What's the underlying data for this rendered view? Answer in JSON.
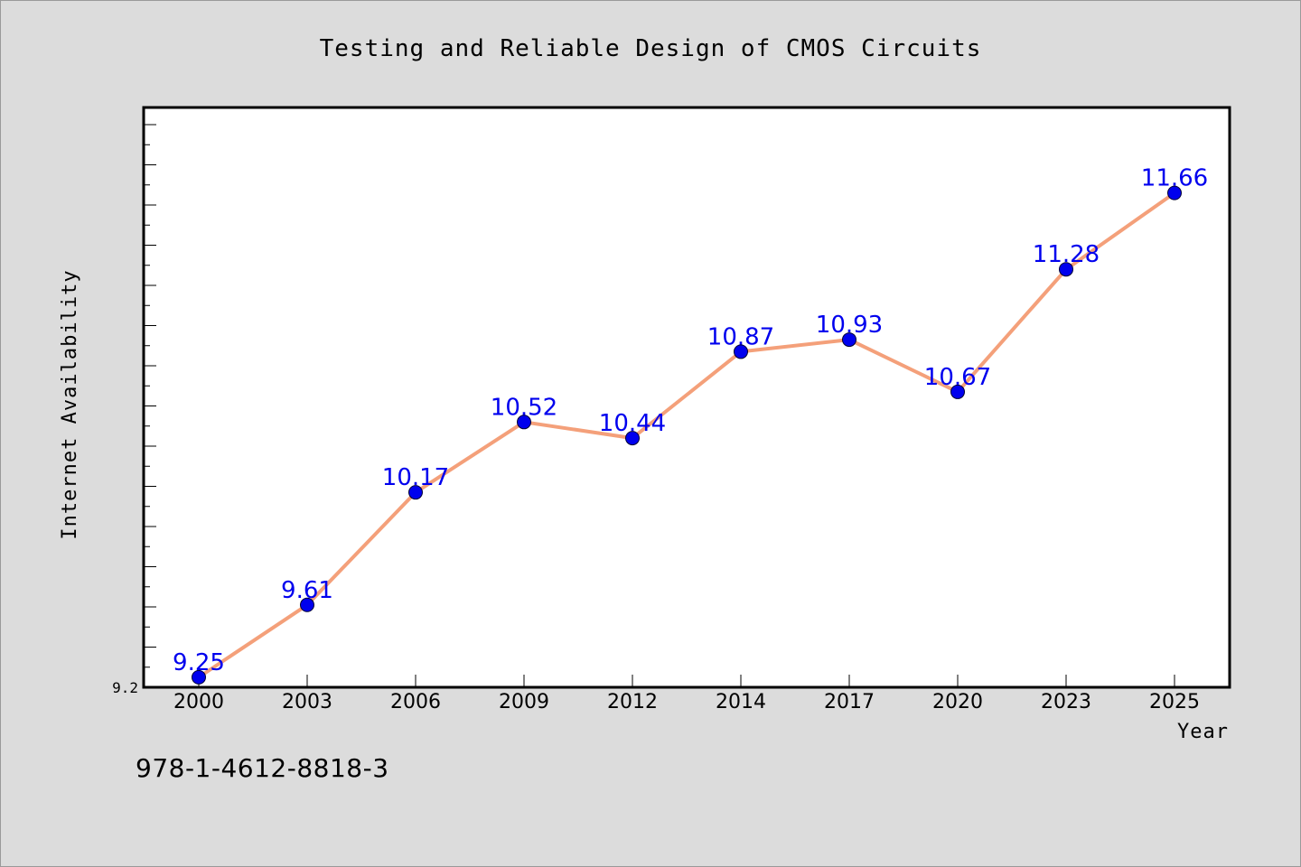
{
  "chart_data": {
    "type": "line",
    "title": "Testing and Reliable Design of CMOS Circuits",
    "xlabel": "Year",
    "ylabel": "Internet Availability",
    "categories": [
      "2000",
      "2003",
      "2006",
      "2009",
      "2012",
      "2014",
      "2017",
      "2020",
      "2023",
      "2025"
    ],
    "series": [
      {
        "values": [
          9.25,
          9.61,
          10.17,
          10.52,
          10.44,
          10.87,
          10.93,
          10.67,
          11.28,
          11.66
        ]
      }
    ],
    "data_labels": [
      "9.25",
      "9.61",
      "10.17",
      "10.52",
      "10.44",
      "10.87",
      "10.93",
      "10.67",
      "11.28",
      "11.66"
    ],
    "ylim": [
      9.2,
      12.0
    ],
    "ytick_labels": [
      "9.2"
    ],
    "grid": false,
    "legend": "none",
    "colors": {
      "line": "#f4a07a",
      "marker": "#0000ee",
      "data_label": "#0000ee",
      "background": "#dcdcdc",
      "plot_area": "#ffffff"
    }
  },
  "footer": {
    "isbn": "978-1-4612-8818-3"
  }
}
